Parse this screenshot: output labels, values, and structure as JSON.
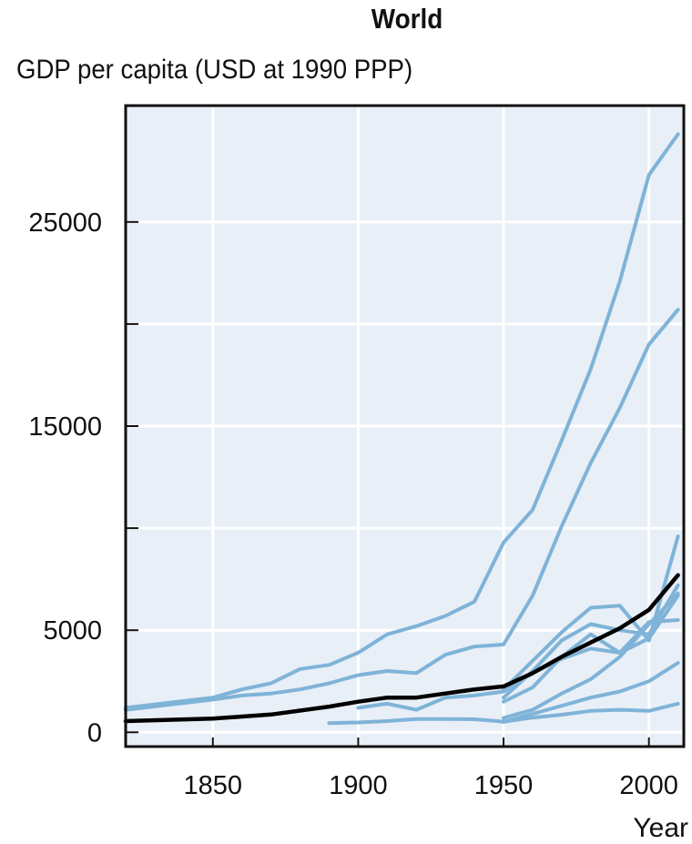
{
  "chart_data": {
    "type": "line",
    "title": "World",
    "ylabel": "GDP per capita (USD at 1990 PPP)",
    "xlabel": "Year",
    "xlim": [
      1820,
      2012
    ],
    "ylim": [
      -700,
      30700
    ],
    "x_ticks": [
      1850,
      1900,
      1950,
      2000
    ],
    "y_ticks": [
      0,
      5000,
      10000,
      15000,
      20000,
      25000
    ],
    "y_tick_labels": [
      "0",
      "5000",
      "",
      "15000",
      "",
      "25000"
    ],
    "grid": true,
    "colors": {
      "background": "#e8eff7",
      "grid": "#ffffff",
      "regions": "#7fb3d8",
      "world": "#000000",
      "frame": "#111111"
    },
    "series": [
      {
        "x": [
          1820,
          1850,
          1860,
          1870,
          1880,
          1890,
          1900,
          1910,
          1920,
          1930,
          1940,
          1950,
          1960,
          1970,
          1980,
          1990,
          2000,
          2010
        ],
        "y": [
          1200,
          1700,
          2100,
          2400,
          3100,
          3300,
          3900,
          4800,
          5200,
          5700,
          6400,
          9300,
          10900,
          14300,
          17800,
          22100,
          27300,
          29300
        ]
      },
      {
        "x": [
          1820,
          1850,
          1860,
          1870,
          1880,
          1890,
          1900,
          1910,
          1920,
          1930,
          1940,
          1950,
          1960,
          1970,
          1980,
          1990,
          2000,
          2010
        ],
        "y": [
          1100,
          1600,
          1800,
          1900,
          2100,
          2400,
          2800,
          3000,
          2900,
          3800,
          4200,
          4300,
          6700,
          10100,
          13200,
          15900,
          19000,
          20700
        ]
      },
      {
        "x": [
          1950,
          1960,
          1970,
          1980,
          1990,
          2000,
          2010
        ],
        "y": [
          2100,
          3500,
          4900,
          6100,
          6200,
          4500,
          9600
        ]
      },
      {
        "x": [
          1950,
          1960,
          1970,
          1980,
          1990,
          2000,
          2010
        ],
        "y": [
          1700,
          3000,
          4500,
          5300,
          5000,
          4800,
          7200
        ]
      },
      {
        "x": [
          1950,
          1960,
          1970,
          1980,
          1990,
          2000,
          2010
        ],
        "y": [
          1500,
          2200,
          3700,
          4800,
          3900,
          5400,
          5500
        ]
      },
      {
        "x": [
          1950,
          1960,
          1970,
          1980,
          1990,
          2000,
          2010
        ],
        "y": [
          700,
          1100,
          1900,
          2600,
          3700,
          5300,
          6800
        ]
      },
      {
        "x": [
          1950,
          1960,
          1970,
          1980,
          1990,
          2000,
          2010
        ],
        "y": [
          500,
          900,
          1300,
          1700,
          2000,
          2500,
          3400
        ]
      },
      {
        "x": [
          1890,
          1900,
          1910,
          1920,
          1930,
          1940,
          1950,
          1960,
          1970,
          1980,
          1990,
          2000,
          2010
        ],
        "y": [
          450,
          480,
          550,
          650,
          650,
          640,
          520,
          720,
          860,
          1050,
          1100,
          1050,
          1400
        ]
      },
      {
        "x": [
          1900,
          1910,
          1920,
          1930,
          1940,
          1950,
          1960,
          1970,
          1980,
          1990,
          2000,
          2010
        ],
        "y": [
          1200,
          1400,
          1100,
          1700,
          1800,
          2000,
          2900,
          3600,
          4100,
          3900,
          4600,
          6700
        ]
      },
      {
        "x": [
          1820,
          1850,
          1870,
          1890,
          1900,
          1910,
          1920,
          1930,
          1940,
          1950,
          1960,
          1970,
          1980,
          1990,
          2000,
          2010
        ],
        "y": [
          550,
          670,
          870,
          1260,
          1500,
          1700,
          1700,
          1900,
          2100,
          2250,
          2900,
          3700,
          4400,
          5100,
          6000,
          7700
        ]
      }
    ]
  }
}
